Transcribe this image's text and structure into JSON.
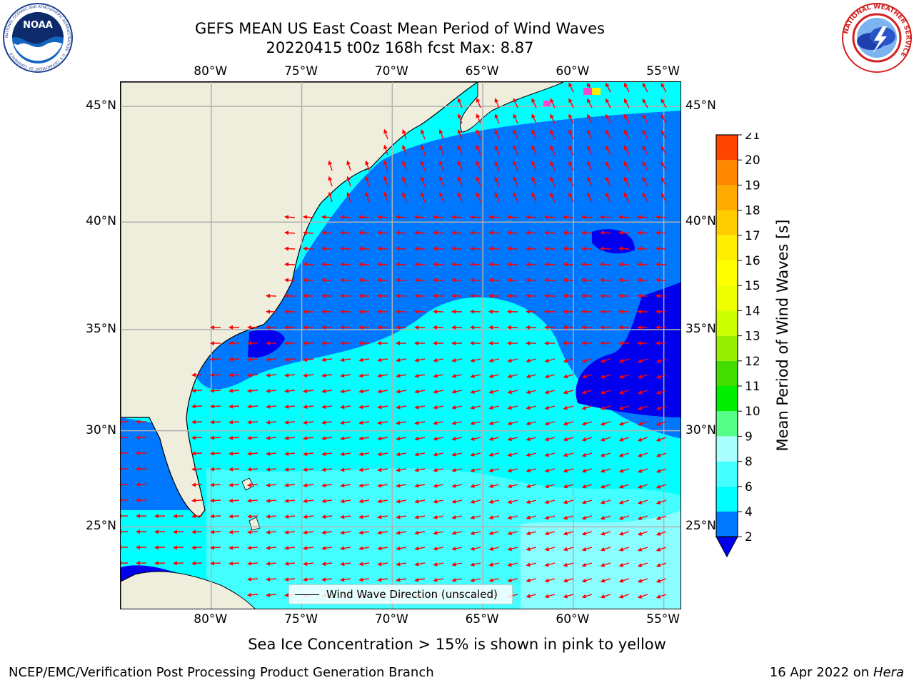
{
  "header": {
    "title_line1": "GEFS MEAN US East Coast Mean Period of Wind Waves",
    "title_line2": "20220415 t00z 168h fcst   Max: 8.87"
  },
  "logos": {
    "noaa_text": "NOAA",
    "noaa_ring_text": "NATIONAL OCEANIC AND ATMOSPHERIC ADMINISTRATION · U.S. DEPARTMENT OF COMMERCE",
    "nws_ring_text": "NATIONAL WEATHER SERVICE"
  },
  "map": {
    "lon_labels": [
      "80°W",
      "75°W",
      "70°W",
      "65°W",
      "60°W",
      "55°W"
    ],
    "lat_labels": [
      "45°N",
      "40°N",
      "35°N",
      "30°N",
      "25°N"
    ],
    "lon_range": [
      -85,
      -54
    ],
    "lat_range": [
      20.5,
      46
    ],
    "grid": true,
    "land_color": "#efeedd",
    "ocean_colors": {
      "2-4": "#0077ff",
      "4-6": "#00ffff",
      "6-8": "#44ffff",
      "8-9": "#aaffff",
      "below": "#0000ee"
    },
    "arrow_color": "#ff0000",
    "legend_label": "Wind Wave Direction (unscaled)"
  },
  "colorbar": {
    "label": "Mean Period of Wind Waves [s]",
    "ticks": [
      "2",
      "4",
      "6",
      "8",
      "9",
      "10",
      "11",
      "12",
      "13",
      "14",
      "15",
      "16",
      "17",
      "18",
      "19",
      "20",
      "21"
    ],
    "colors": [
      "#0077ff",
      "#00ffff",
      "#44ffff",
      "#aaffff",
      "#55ff88",
      "#00ee00",
      "#44dd00",
      "#99ee00",
      "#ccff00",
      "#eeff00",
      "#ffff00",
      "#ffee00",
      "#ffcc00",
      "#ffaa00",
      "#ff8800",
      "#ff4400",
      "#ff0000"
    ],
    "under_color": "#0000ee"
  },
  "footer": {
    "note": "Sea Ice Concentration > 15% is shown in pink to yellow",
    "credit": "NCEP/EMC/Verification Post Processing Product Generation Branch",
    "date": "16 Apr 2022 on ",
    "machine": "Hera"
  }
}
